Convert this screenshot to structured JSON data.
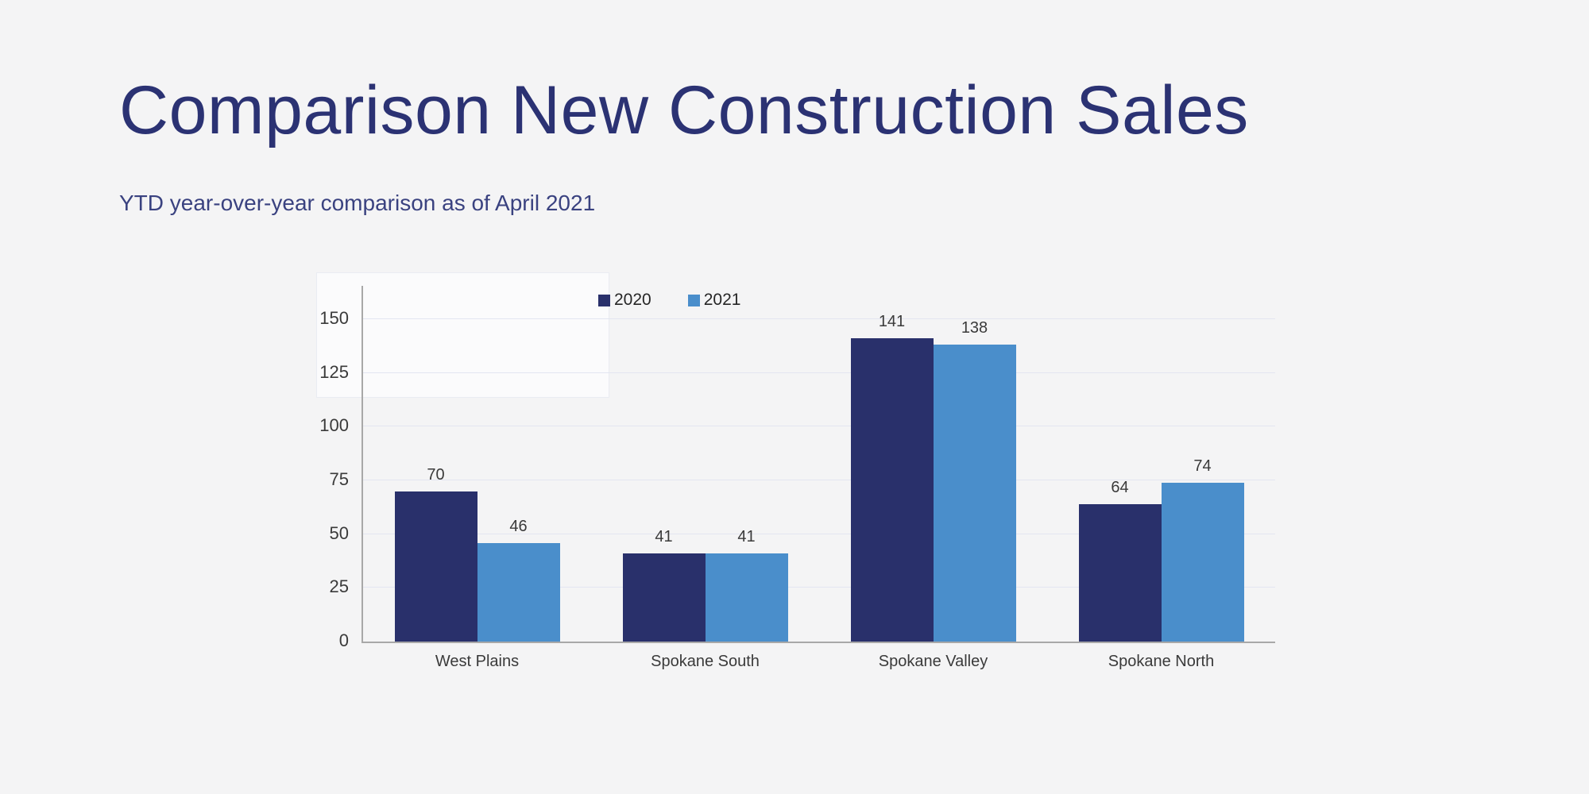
{
  "slide": {
    "title": "Comparison New Construction Sales",
    "subtitle": "YTD year-over-year comparison as of April 2021",
    "background_color": "#f4f4f5",
    "title_color": "#2b3273"
  },
  "chart_data": {
    "type": "bar",
    "title": "",
    "xlabel": "",
    "ylabel": "",
    "categories": [
      "West Plains",
      "Spokane South",
      "Spokane Valley",
      "Spokane North"
    ],
    "series": [
      {
        "name": "2020",
        "color": "#29306b",
        "values": [
          70,
          41,
          141,
          64
        ]
      },
      {
        "name": "2021",
        "color": "#4a8ecb",
        "values": [
          46,
          41,
          138,
          74
        ]
      }
    ],
    "ylim": [
      0,
      150
    ],
    "yticks": [
      0,
      25,
      50,
      75,
      100,
      125,
      150
    ],
    "grid": true,
    "legend_position": "top",
    "value_labels": true,
    "gridline_color": "#e3e5f1",
    "axis_color": "#a8a8a8",
    "label_color": "#3a3a3a"
  }
}
